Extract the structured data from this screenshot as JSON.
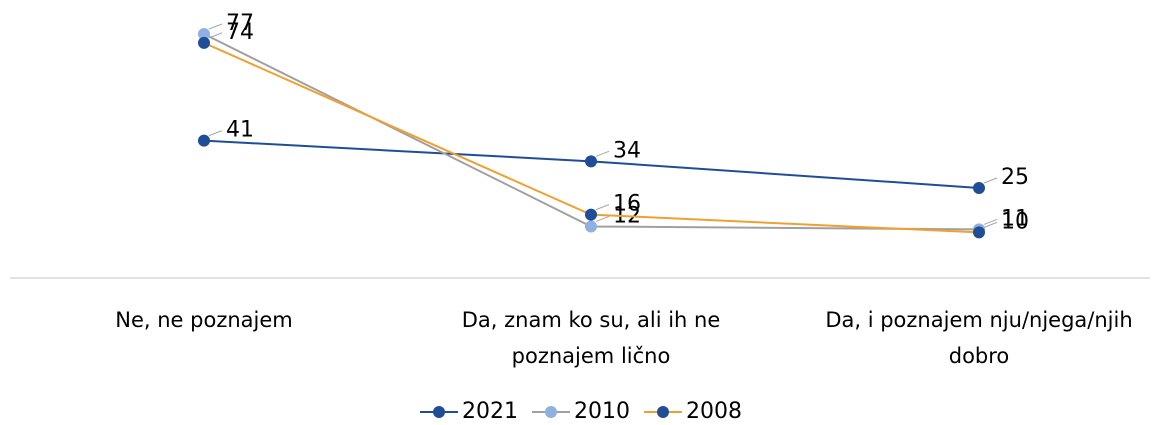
{
  "chart_data": {
    "type": "line",
    "categories": [
      "Ne, ne poznajem",
      "Da, znam ko su, ali ih ne poznajem lično",
      "Da, i poznajem nju/njega/njih dobro"
    ],
    "series": [
      {
        "name": "2021",
        "color": "#1f4e96",
        "marker_color": "#1f4e96",
        "values": [
          41,
          34,
          25
        ]
      },
      {
        "name": "2010",
        "color": "#a0a0a0",
        "marker_color": "#8fb0e0",
        "values": [
          77,
          12,
          11
        ]
      },
      {
        "name": "2008",
        "color": "#f0a030",
        "marker_color": "#1f4e96",
        "values": [
          74,
          16,
          10
        ]
      }
    ],
    "legend": "bottom"
  }
}
